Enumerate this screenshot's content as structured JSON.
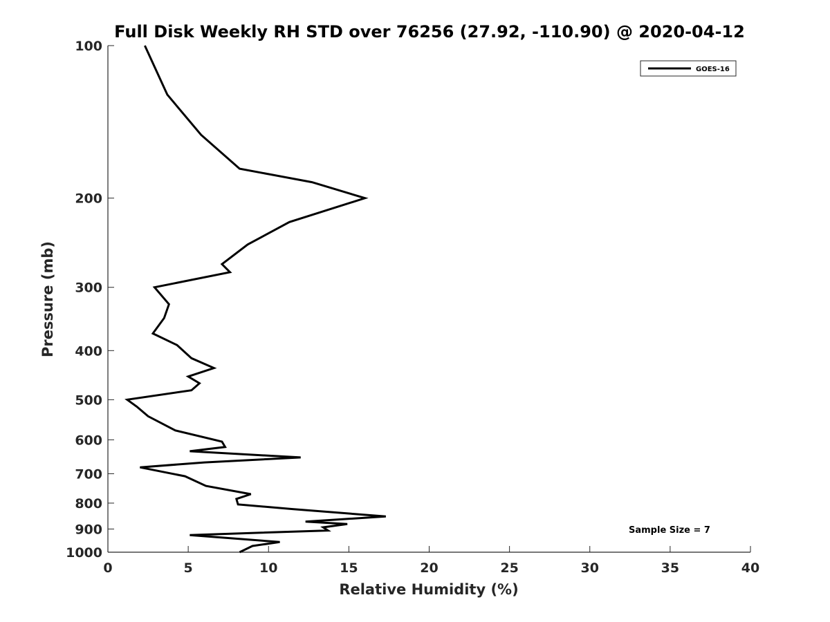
{
  "chart_data": {
    "type": "line",
    "title": "Full Disk Weekly RH STD over 76256 (27.92, -110.90) @ 2020-04-12",
    "xlabel": "Relative Humidity (%)",
    "ylabel": "Pressure (mb)",
    "xlim": [
      0,
      40
    ],
    "ylim": [
      100,
      1000
    ],
    "y_scale": "log",
    "y_reversed": true,
    "x_ticks": [
      "0",
      "5",
      "10",
      "15",
      "20",
      "25",
      "30",
      "35",
      "40"
    ],
    "y_ticks": [
      "100",
      "200",
      "300",
      "400",
      "500",
      "600",
      "700",
      "800",
      "900",
      "1000"
    ],
    "grid": false,
    "legend_position": "top-right",
    "annotation": "Sample Size = 7",
    "series": [
      {
        "name": "GOES-16",
        "color": "#000000",
        "points": [
          [
            2.3,
            100
          ],
          [
            3.7,
            125
          ],
          [
            5.8,
            150
          ],
          [
            8.2,
            175
          ],
          [
            12.7,
            186
          ],
          [
            16.0,
            200
          ],
          [
            11.3,
            223
          ],
          [
            8.7,
            247
          ],
          [
            7.1,
            270
          ],
          [
            7.6,
            280
          ],
          [
            2.9,
            300
          ],
          [
            3.8,
            324
          ],
          [
            3.5,
            345
          ],
          [
            2.8,
            370
          ],
          [
            4.3,
            390
          ],
          [
            5.2,
            414
          ],
          [
            6.6,
            433
          ],
          [
            5.0,
            450
          ],
          [
            5.7,
            464
          ],
          [
            5.2,
            479
          ],
          [
            1.2,
            500
          ],
          [
            1.8,
            516
          ],
          [
            2.5,
            539
          ],
          [
            4.2,
            575
          ],
          [
            7.1,
            605
          ],
          [
            7.3,
            620
          ],
          [
            5.1,
            632
          ],
          [
            12.0,
            650
          ],
          [
            6.0,
            665
          ],
          [
            2.0,
            680
          ],
          [
            4.8,
            708
          ],
          [
            6.1,
            740
          ],
          [
            8.9,
            768
          ],
          [
            8.0,
            785
          ],
          [
            8.1,
            805
          ],
          [
            11.5,
            822
          ],
          [
            17.3,
            850
          ],
          [
            12.3,
            870
          ],
          [
            14.9,
            880
          ],
          [
            13.4,
            893
          ],
          [
            13.7,
            906
          ],
          [
            5.1,
            925
          ],
          [
            10.7,
            955
          ],
          [
            9.0,
            972
          ],
          [
            8.2,
            1000
          ]
        ]
      }
    ]
  }
}
